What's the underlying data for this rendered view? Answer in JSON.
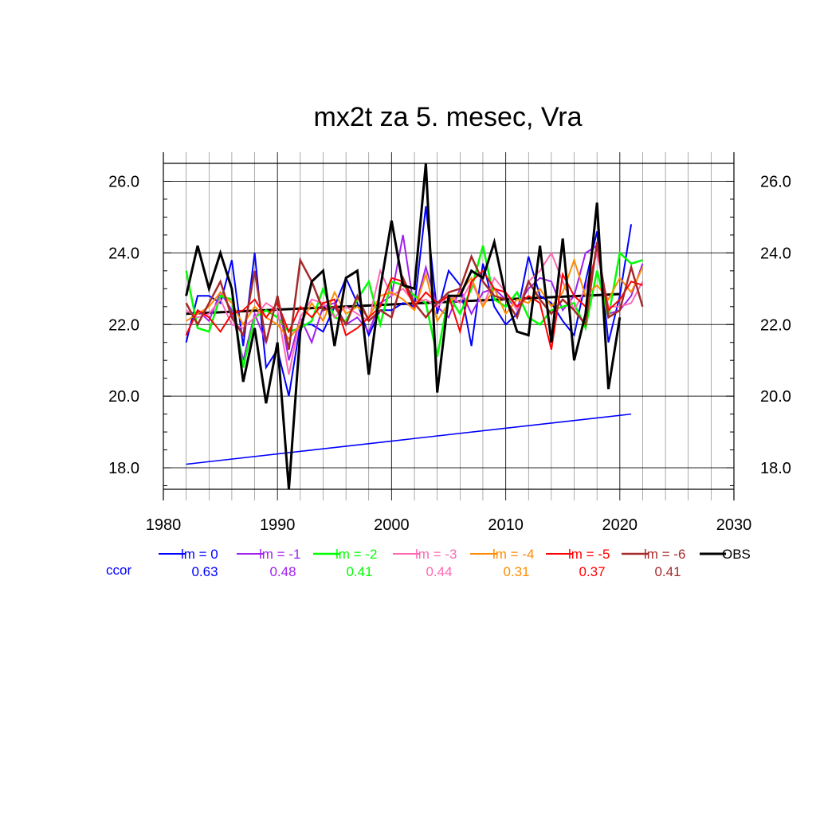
{
  "chart_data": {
    "type": "line",
    "title": "mx2t za 5. mesec, Vra",
    "xlabel": "",
    "ylabel": "",
    "xlim": [
      1980,
      2030
    ],
    "ylim": [
      17.4,
      26.5
    ],
    "x_ticks": [
      "1980",
      "1990",
      "2000",
      "2010",
      "2020",
      "2030"
    ],
    "y_ticks": [
      "18.0",
      "20.0",
      "22.0",
      "24.0",
      "26.0"
    ],
    "grid": true,
    "legend_position": "bottom",
    "ccor_label": "ccor",
    "x": [
      1982,
      1983,
      1984,
      1985,
      1986,
      1987,
      1988,
      1989,
      1990,
      1991,
      1992,
      1993,
      1994,
      1995,
      1996,
      1997,
      1998,
      1999,
      2000,
      2001,
      2002,
      2003,
      2004,
      2005,
      2006,
      2007,
      2008,
      2009,
      2010,
      2011,
      2012,
      2013,
      2014,
      2015,
      2016,
      2017,
      2018,
      2019,
      2020,
      2021,
      2022
    ],
    "series": [
      {
        "name": "lm = 0",
        "color": "#0000ff",
        "ccor": "0.63",
        "width": 2,
        "values": [
          21.5,
          22.8,
          22.8,
          22.6,
          23.8,
          21.4,
          24.0,
          20.8,
          21.3,
          20.0,
          22.0,
          22.0,
          21.8,
          22.5,
          23.3,
          22.6,
          21.7,
          22.4,
          22.4,
          22.6,
          22.5,
          25.3,
          22.3,
          23.5,
          23.1,
          21.4,
          23.7,
          22.5,
          22.0,
          22.3,
          23.9,
          22.8,
          22.6,
          22.1,
          21.7,
          23.2,
          24.6,
          21.5,
          22.8,
          24.8,
          null
        ]
      },
      {
        "name": "lm = -1",
        "color": "#a020f0",
        "ccor": "0.48",
        "width": 2,
        "values": [
          21.7,
          22.4,
          22.1,
          22.9,
          22.4,
          21.0,
          22.3,
          21.5,
          22.8,
          21.0,
          22.2,
          21.5,
          22.5,
          22.6,
          22.0,
          22.2,
          21.8,
          22.6,
          22.8,
          24.5,
          22.4,
          23.6,
          22.5,
          22.2,
          23.0,
          22.3,
          22.9,
          23.0,
          22.7,
          22.5,
          23.0,
          23.3,
          23.2,
          22.4,
          22.8,
          24.0,
          24.2,
          22.3,
          22.4,
          22.8,
          23.7
        ]
      },
      {
        "name": "lm = -2",
        "color": "#00ff00",
        "ccor": "0.41",
        "width": 2.5,
        "values": [
          23.5,
          21.9,
          21.8,
          22.8,
          22.7,
          20.8,
          22.2,
          22.4,
          22.2,
          21.8,
          21.9,
          22.1,
          23.0,
          22.2,
          22.1,
          22.7,
          23.2,
          22.0,
          23.2,
          23.1,
          22.8,
          22.6,
          21.1,
          22.8,
          22.3,
          23.0,
          24.2,
          22.7,
          22.5,
          22.9,
          22.2,
          22.0,
          22.4,
          22.5,
          22.6,
          21.9,
          23.5,
          22.2,
          24.0,
          23.7,
          23.8
        ]
      },
      {
        "name": "lm = -3",
        "color": "#ff69b4",
        "ccor": "0.44",
        "width": 2,
        "values": [
          22.4,
          22.2,
          22.3,
          22.7,
          22.0,
          21.9,
          22.2,
          22.6,
          22.4,
          20.6,
          22.2,
          22.7,
          22.6,
          22.2,
          22.5,
          22.3,
          22.1,
          23.5,
          22.8,
          23.0,
          22.6,
          22.7,
          22.5,
          22.8,
          22.6,
          23.2,
          22.5,
          23.3,
          22.9,
          22.4,
          23.2,
          23.5,
          24.0,
          23.2,
          22.4,
          23.0,
          24.0,
          22.5,
          22.5,
          22.6,
          23.2
        ]
      },
      {
        "name": "lm = -4",
        "color": "#ff8c00",
        "ccor": "0.31",
        "width": 2,
        "values": [
          22.1,
          22.3,
          22.5,
          22.9,
          22.6,
          22.0,
          22.5,
          22.2,
          22.0,
          21.6,
          22.0,
          22.6,
          22.1,
          22.9,
          22.3,
          22.5,
          22.2,
          22.8,
          22.9,
          22.7,
          22.4,
          23.4,
          22.1,
          22.6,
          22.9,
          23.3,
          22.5,
          23.0,
          22.3,
          22.7,
          22.6,
          23.0,
          22.5,
          22.9,
          23.8,
          22.8,
          23.1,
          22.7,
          23.3,
          22.9,
          23.6
        ]
      },
      {
        "name": "lm = -5",
        "color": "#ff0000",
        "ccor": "0.37",
        "width": 2,
        "values": [
          21.7,
          22.4,
          22.2,
          21.8,
          22.3,
          22.4,
          22.7,
          22.2,
          22.6,
          21.8,
          22.5,
          22.2,
          22.6,
          22.7,
          21.7,
          21.9,
          22.2,
          22.5,
          23.3,
          23.2,
          22.5,
          22.9,
          22.6,
          22.8,
          21.8,
          23.2,
          23.5,
          23.0,
          22.9,
          22.5,
          22.8,
          22.6,
          21.3,
          23.4,
          22.8,
          22.5,
          24.2,
          22.4,
          22.7,
          23.2,
          23.1
        ]
      },
      {
        "name": "lm = -6",
        "color": "#a52a2a",
        "ccor": "0.41",
        "width": 2.5,
        "values": [
          22.6,
          22.0,
          22.6,
          23.2,
          22.2,
          21.7,
          23.5,
          21.5,
          22.8,
          21.3,
          23.8,
          23.2,
          22.4,
          22.5,
          22.0,
          22.8,
          22.1,
          22.4,
          22.2,
          23.3,
          22.6,
          22.2,
          22.6,
          22.9,
          23.0,
          23.9,
          23.2,
          22.8,
          22.7,
          22.2,
          23.2,
          22.7,
          22.3,
          22.7,
          22.4,
          22.0,
          24.3,
          22.2,
          22.4,
          23.6,
          22.5
        ]
      },
      {
        "name": "OBS",
        "color": "#000000",
        "ccor": "",
        "width": 3,
        "values": [
          22.8,
          24.2,
          23.0,
          24.0,
          23.0,
          20.4,
          21.9,
          19.8,
          21.5,
          17.4,
          21.8,
          23.2,
          23.5,
          21.4,
          23.3,
          23.5,
          20.6,
          23.0,
          24.9,
          23.1,
          23.0,
          26.5,
          20.1,
          22.8,
          22.8,
          23.5,
          23.3,
          24.3,
          22.8,
          21.8,
          21.7,
          24.2,
          21.5,
          24.4,
          21.0,
          22.3,
          25.4,
          20.2,
          22.2,
          null,
          null
        ]
      }
    ],
    "trend_lines": [
      {
        "name": "OBS trend",
        "color": "#000000",
        "width": 3,
        "x": [
          1982,
          2020
        ],
        "values": [
          22.3,
          22.85
        ]
      },
      {
        "name": "lm = 0 trend",
        "color": "#0000ff",
        "width": 1.6,
        "x": [
          1982,
          2021
        ],
        "values": [
          18.1,
          19.5
        ]
      }
    ]
  }
}
